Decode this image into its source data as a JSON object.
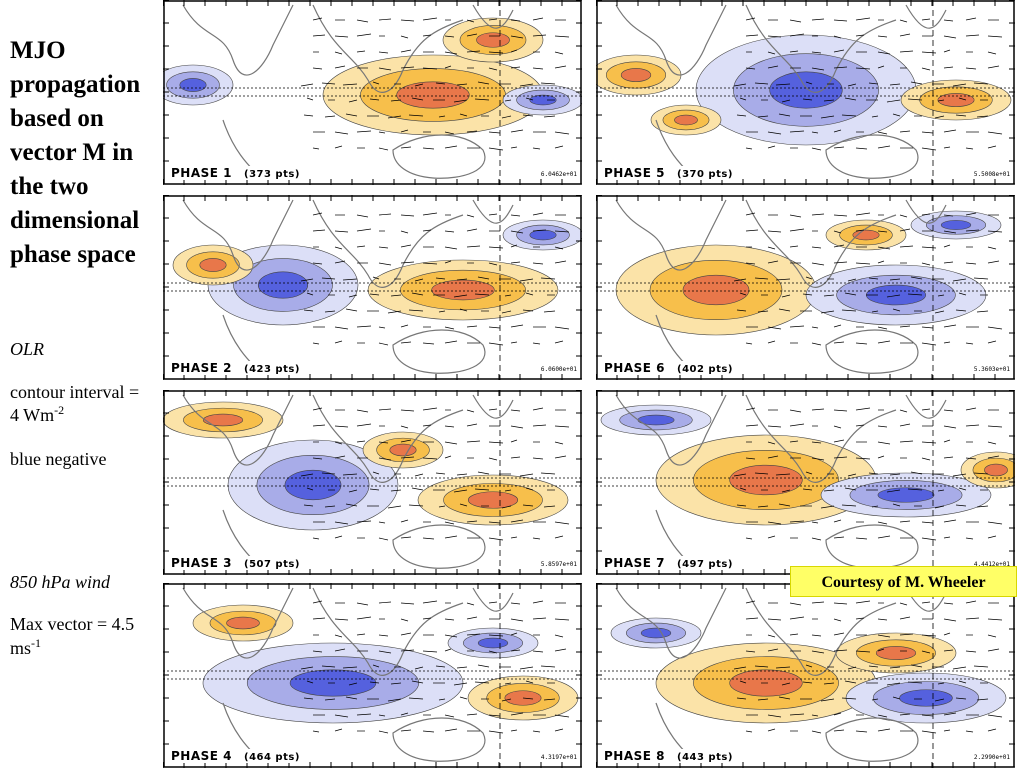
{
  "sidebar": {
    "title": "MJO propagation based on vector M in the two dimensional phase space",
    "olr_label": "OLR",
    "contour_interval": "contour interval =",
    "contour_value": "4 Wm",
    "contour_exp": "-2",
    "blue_negative": "blue negative",
    "wind_label": "850 hPa wind",
    "max_vector": "Max vector = 4.5",
    "max_vector_unit": "ms",
    "max_vector_exp": "-1"
  },
  "credit": "Courtesy of M. Wheeler",
  "colors": {
    "positive_light": "#fbe3a8",
    "positive_mid": "#f7bf4b",
    "positive_strong": "#e8774a",
    "negative_light": "#dcdff7",
    "negative_mid": "#a8ace8",
    "negative_strong": "#5561de",
    "land": "#777777"
  },
  "panels": [
    {
      "id": "1",
      "phase": "PHASE  1",
      "points": "(373 pts)",
      "scale": "6.0462e+01"
    },
    {
      "id": "2",
      "phase": "PHASE  2",
      "points": "(423 pts)",
      "scale": "6.0600e+01"
    },
    {
      "id": "3",
      "phase": "PHASE  3",
      "points": "(507 pts)",
      "scale": "5.8597e+01"
    },
    {
      "id": "4",
      "phase": "PHASE  4",
      "points": "(464 pts)",
      "scale": "4.3197e+01"
    },
    {
      "id": "5",
      "phase": "PHASE  5",
      "points": "(370 pts)",
      "scale": "5.5008e+01"
    },
    {
      "id": "6",
      "phase": "PHASE  6",
      "points": "(402 pts)",
      "scale": "5.3603e+01"
    },
    {
      "id": "7",
      "phase": "PHASE  7",
      "points": "(497 pts)",
      "scale": "4.4412e+01"
    },
    {
      "id": "8",
      "phase": "PHASE  8",
      "points": "(443 pts)",
      "scale": "2.2990e+01"
    }
  ]
}
